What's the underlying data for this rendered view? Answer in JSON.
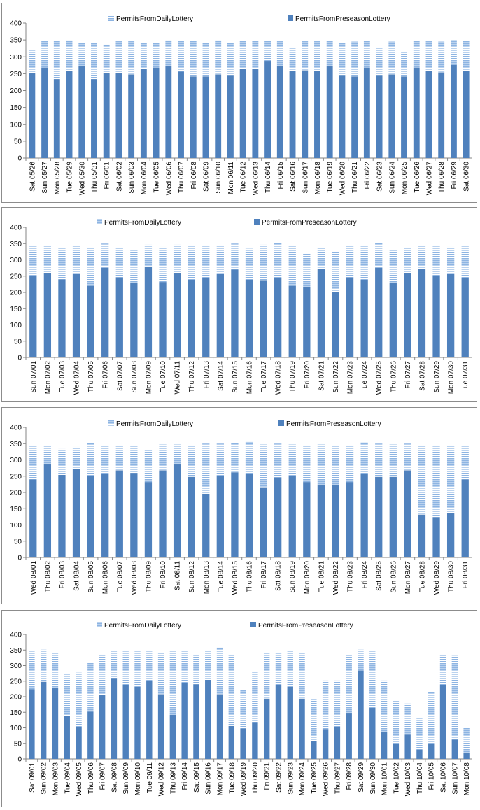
{
  "legend": {
    "daily": "PermitsFromDailyLottery",
    "preseason": "PermitsFromPreseasonLottery"
  },
  "colors": {
    "preseason": "#4f81bd",
    "daily_stripe": "#8db4e2",
    "axis": "#868686",
    "grid": "#d9d9d9"
  },
  "chart_data": [
    {
      "type": "bar",
      "stacked": true,
      "ylim": [
        0,
        400
      ],
      "yticks": [
        0,
        50,
        100,
        150,
        200,
        250,
        300,
        350,
        400
      ],
      "grid": false,
      "legend_position": "top",
      "categories": [
        "Sat 05/26",
        "Sun 05/27",
        "Mon 05/28",
        "Tue 05/29",
        "Wed 05/30",
        "Thu 05/31",
        "Fri 06/01",
        "Sat 06/02",
        "Sun 06/03",
        "Mon 06/04",
        "Tue 06/05",
        "Wed 06/06",
        "Thu 06/07",
        "Fri 06/08",
        "Sat 06/09",
        "Sun 06/10",
        "Mon 06/11",
        "Tue 06/12",
        "Wed 06/13",
        "Thu 06/14",
        "Fri 06/15",
        "Sat 06/16",
        "Sun 06/17",
        "Mon 06/18",
        "Tue 06/19",
        "Wed 06/20",
        "Thu 06/21",
        "Fri 06/22",
        "Sat 06/23",
        "Sun 06/24",
        "Mon 06/25",
        "Tue 06/26",
        "Wed 06/27",
        "Thu 06/28",
        "Fri 06/29",
        "Sat 06/30"
      ],
      "series": [
        {
          "name": "PermitsFromPreseasonLottery",
          "values": [
            252,
            268,
            234,
            257,
            272,
            234,
            252,
            252,
            248,
            265,
            268,
            272,
            256,
            242,
            242,
            248,
            246,
            265,
            265,
            288,
            272,
            257,
            260,
            257,
            272,
            246,
            242,
            268,
            246,
            248,
            242,
            268,
            257,
            254,
            276,
            257
          ]
        },
        {
          "name": "PermitsFromDailyLottery",
          "values": [
            71,
            79,
            114,
            92,
            69,
            107,
            84,
            94,
            98,
            75,
            72,
            77,
            91,
            105,
            98,
            101,
            94,
            83,
            83,
            60,
            74,
            72,
            86,
            89,
            75,
            94,
            103,
            80,
            83,
            97,
            71,
            80,
            89,
            91,
            74,
            91
          ]
        }
      ]
    },
    {
      "type": "bar",
      "stacked": true,
      "ylim": [
        0,
        400
      ],
      "yticks": [
        0,
        50,
        100,
        150,
        200,
        250,
        300,
        350,
        400
      ],
      "grid": false,
      "legend_position": "top",
      "categories": [
        "Sun 07/01",
        "Mon 07/02",
        "Tue 07/03",
        "Wed 07/04",
        "Thu 07/05",
        "Fri 07/06",
        "Sat 07/07",
        "Sun 07/08",
        "Mon 07/09",
        "Tue 07/10",
        "Wed 07/11",
        "Thu 07/12",
        "Fri 07/13",
        "Sat 07/14",
        "Sun 07/15",
        "Mon 07/16",
        "Tue 07/17",
        "Wed 07/18",
        "Thu 07/19",
        "Fri 07/20",
        "Sat 07/21",
        "Sun 07/22",
        "Mon 07/23",
        "Tue 07/24",
        "Wed 07/25",
        "Thu 07/26",
        "Fri 07/27",
        "Sat 07/28",
        "Sun 07/29",
        "Mon 07/30",
        "Tue 07/31"
      ],
      "series": [
        {
          "name": "PermitsFromPreseasonLottery",
          "values": [
            252,
            260,
            240,
            256,
            220,
            276,
            246,
            228,
            280,
            232,
            260,
            238,
            245,
            256,
            270,
            238,
            236,
            245,
            220,
            216,
            272,
            202,
            246,
            238,
            276,
            228,
            260,
            272,
            250,
            256,
            245
          ]
        },
        {
          "name": "PermitsFromDailyLottery",
          "values": [
            91,
            86,
            96,
            86,
            116,
            74,
            90,
            104,
            67,
            108,
            87,
            104,
            100,
            89,
            80,
            97,
            111,
            106,
            122,
            104,
            66,
            124,
            97,
            104,
            75,
            103,
            76,
            70,
            94,
            84,
            98
          ]
        }
      ]
    },
    {
      "type": "bar",
      "stacked": true,
      "ylim": [
        0,
        400
      ],
      "yticks": [
        0,
        50,
        100,
        150,
        200,
        250,
        300,
        350,
        400
      ],
      "grid": false,
      "legend_position": "top",
      "categories": [
        "Wed 08/01",
        "Thu 08/02",
        "Fri 08/03",
        "Sat 08/04",
        "Sun 08/05",
        "Mon 08/06",
        "Tue 08/07",
        "Wed 08/08",
        "Thu 08/09",
        "Fri 08/10",
        "Sat 08/11",
        "Sun 08/12",
        "Mon 08/13",
        "Tue 08/14",
        "Wed 08/15",
        "Thu 08/16",
        "Fri 08/17",
        "Sat 08/18",
        "Sun 08/19",
        "Mon 08/20",
        "Tue 08/21",
        "Wed 08/22",
        "Thu 08/23",
        "Fri 08/24",
        "Sat 08/25",
        "Sun 08/26",
        "Mon 08/27",
        "Tue 08/28",
        "Wed 08/29",
        "Thu 08/30",
        "Fri 08/31"
      ],
      "series": [
        {
          "name": "PermitsFromPreseasonLottery",
          "values": [
            240,
            286,
            254,
            272,
            252,
            258,
            268,
            260,
            232,
            268,
            286,
            248,
            196,
            252,
            262,
            258,
            216,
            246,
            252,
            232,
            224,
            222,
            232,
            258,
            248,
            248,
            268,
            132,
            124,
            136,
            240
          ]
        },
        {
          "name": "PermitsFromDailyLottery",
          "values": [
            102,
            60,
            80,
            68,
            100,
            84,
            75,
            86,
            100,
            80,
            62,
            94,
            154,
            98,
            89,
            97,
            132,
            104,
            96,
            112,
            124,
            124,
            110,
            96,
            102,
            100,
            82,
            214,
            218,
            206,
            106
          ]
        }
      ]
    },
    {
      "type": "bar",
      "stacked": true,
      "ylim": [
        0,
        400
      ],
      "yticks": [
        0,
        50,
        100,
        150,
        200,
        250,
        300,
        350,
        400
      ],
      "grid": false,
      "legend_position": "top",
      "categories": [
        "Sat 09/01",
        "Sun 09/02",
        "Mon 09/03",
        "Tue 09/04",
        "Wed 09/05",
        "Thu 09/06",
        "Fri 09/07",
        "Sat 09/08",
        "Sun 09/09",
        "Mon 09/10",
        "Tue 09/11",
        "Wed 09/12",
        "Thu 09/13",
        "Fri 09/14",
        "Sat 09/15",
        "Sun 09/16",
        "Mon 09/17",
        "Tue 09/18",
        "Wed 09/19",
        "Thu 09/20",
        "Fri 09/21",
        "Sat 09/22",
        "Sun 09/23",
        "Mon 09/24",
        "Tue 09/25",
        "Wed 09/26",
        "Thu 09/27",
        "Fri 09/28",
        "Sat 09/29",
        "Sun 09/30",
        "Mon 10/01",
        "Tue 10/02",
        "Wed 10/03",
        "Thu 10/04",
        "Fri 10/05",
        "Sat 10/06",
        "Sun 10/07",
        "Mon 10/08"
      ],
      "series": [
        {
          "name": "PermitsFromPreseasonLottery",
          "values": [
            224,
            248,
            228,
            138,
            102,
            152,
            206,
            258,
            236,
            232,
            250,
            208,
            142,
            244,
            240,
            254,
            208,
            106,
            98,
            118,
            194,
            236,
            232,
            194,
            58,
            96,
            102,
            146,
            284,
            164,
            86,
            50,
            78,
            30,
            50,
            236,
            62,
            18
          ]
        },
        {
          "name": "PermitsFromDailyLottery",
          "values": [
            122,
            104,
            114,
            134,
            176,
            160,
            130,
            90,
            112,
            118,
            96,
            132,
            204,
            106,
            96,
            94,
            150,
            230,
            124,
            162,
            146,
            104,
            116,
            146,
            136,
            156,
            150,
            188,
            68,
            186,
            166,
            136,
            100,
            104,
            164,
            100,
            270,
            84
          ]
        }
      ]
    }
  ]
}
